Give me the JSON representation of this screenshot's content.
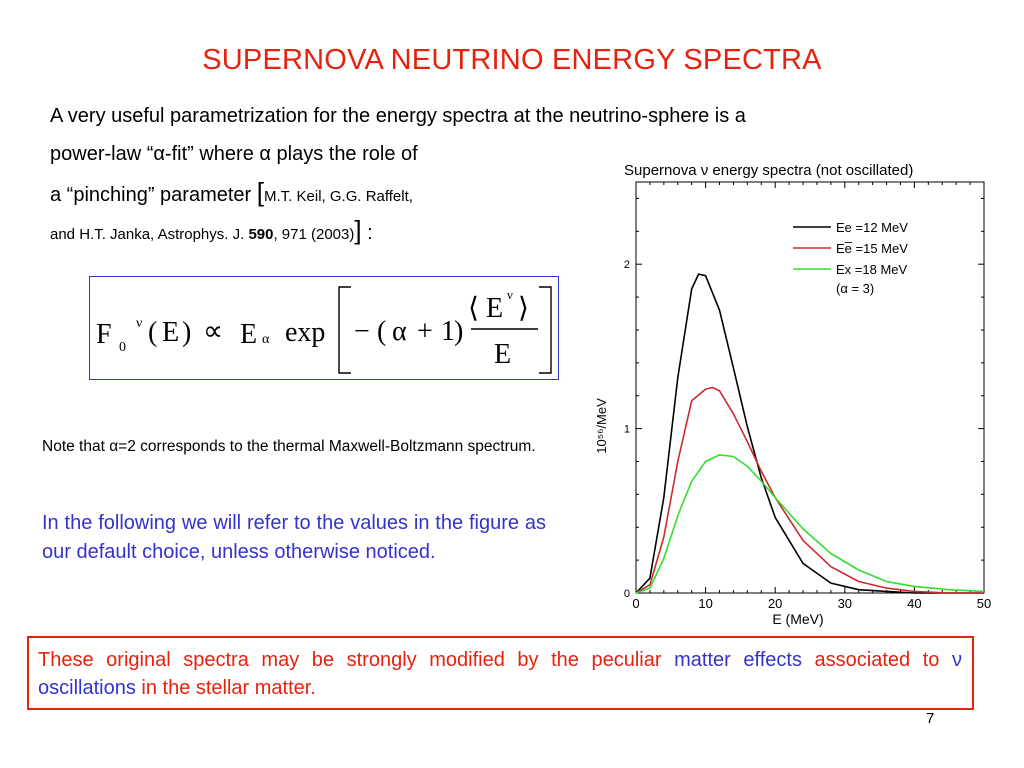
{
  "slide": {
    "title": "SUPERNOVA NEUTRINO ENERGY SPECTRA",
    "intro_line1": "A very useful parametrization for the energy spectra at the neutrino-sphere is a",
    "intro_line2_a": "power-law “",
    "alpha": "α",
    "intro_line2_b": "-fit” where ",
    "intro_line2_c": " plays the role of",
    "intro_line3": "a “pinching” parameter ",
    "bracket_open": "[",
    "ref_authors_a": "M.T. Keil, G.G. Raffelt,",
    "ref_authors_b": "and H.T. Janka,  Astrophys. J. ",
    "ref_volume": "590",
    "ref_pages": ", 971 (2003)",
    "bracket_close": "]",
    "colon": " :",
    "formula": {
      "F": "F",
      "sub_0": "0",
      "sup_nu": "ν",
      "lparen": "(",
      "E": "E",
      "rparen": ")",
      "propto": "∝",
      "alpha": "α",
      "exp": "exp",
      "minus": "−",
      "plus": "+",
      "one": "1",
      "lang": "⟨",
      "rang": "⟩"
    },
    "note_a": "Note that ",
    "note_b": "=2 corresponds to the thermal Maxwell-Boltzmann spectrum.",
    "default_text": "In the following we will refer to the values in the figure as our default choice, unless otherwise noticed.",
    "warning_a": "These original spectra may be strongly modified by the peculiar ",
    "warning_b": "matter effects",
    "warning_c": " associated to ",
    "nu": "ν",
    "warning_d": " oscillations",
    "warning_e": " in the stellar matter.",
    "page_number": "7"
  },
  "colors": {
    "title_red": "#e8210e",
    "text_blue": "#3333cc",
    "curve_black": "#000000",
    "curve_red": "#cc2a2a",
    "curve_green": "#33dd33"
  },
  "chart_data": {
    "type": "line",
    "title": "Supernova ν energy spectra (not oscillated)",
    "xlabel": "E (MeV)",
    "ylabel": "10⁵⁶/MeV",
    "xlim": [
      0,
      50
    ],
    "ylim": [
      0,
      2.5
    ],
    "x_ticks": [
      "0",
      "10",
      "20",
      "30",
      "40",
      "50"
    ],
    "y_ticks": [
      "0",
      "1",
      "2"
    ],
    "legend_position": "top-right",
    "legend_note": "(α = 3)",
    "alpha": 3,
    "series": [
      {
        "name": "Ee =12 MeV",
        "mean_energy": 12,
        "color": "#000000",
        "x": [
          0,
          2,
          4,
          6,
          8,
          9,
          10,
          12,
          14,
          16,
          18,
          20,
          24,
          28,
          32,
          36,
          40,
          45,
          50
        ],
        "y": [
          0,
          0.09,
          0.58,
          1.31,
          1.85,
          1.94,
          1.93,
          1.72,
          1.37,
          1.01,
          0.7,
          0.46,
          0.18,
          0.06,
          0.02,
          0.01,
          0,
          0,
          0
        ]
      },
      {
        "name": "Ee̅ =15 MeV",
        "mean_energy": 15,
        "color": "#cc2a2a",
        "x": [
          0,
          2,
          4,
          6,
          8,
          10,
          11,
          12,
          14,
          16,
          18,
          20,
          24,
          28,
          32,
          36,
          40,
          45,
          50
        ],
        "y": [
          0,
          0.05,
          0.34,
          0.8,
          1.17,
          1.24,
          1.25,
          1.23,
          1.09,
          0.92,
          0.74,
          0.58,
          0.32,
          0.16,
          0.07,
          0.03,
          0.01,
          0,
          0
        ]
      },
      {
        "name": "Ex =18 MeV",
        "mean_energy": 18,
        "color": "#33dd33",
        "x": [
          0,
          2,
          4,
          6,
          8,
          10,
          12,
          14,
          16,
          18,
          20,
          24,
          28,
          32,
          36,
          40,
          45,
          50
        ],
        "y": [
          0,
          0.03,
          0.21,
          0.47,
          0.68,
          0.8,
          0.84,
          0.83,
          0.77,
          0.68,
          0.58,
          0.39,
          0.24,
          0.14,
          0.07,
          0.04,
          0.02,
          0.01
        ]
      }
    ]
  }
}
